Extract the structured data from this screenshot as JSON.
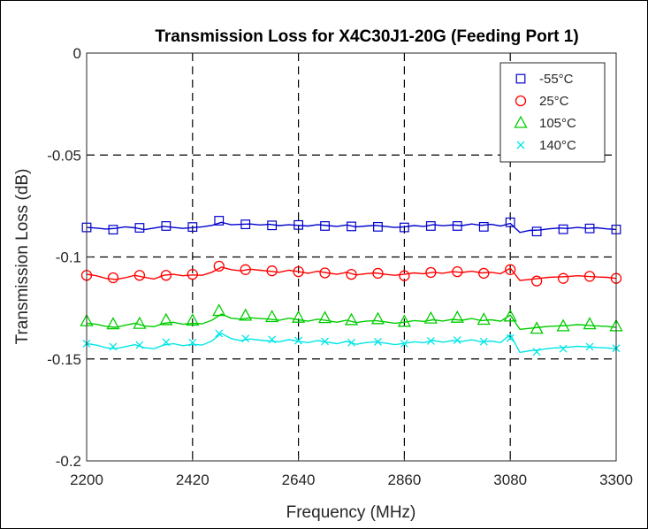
{
  "chart_data": {
    "type": "line",
    "title": "Transmission Loss for X4C30J1-20G (Feeding Port 1)",
    "xlabel": "Frequency (MHz)",
    "ylabel": "Transmission Loss (dB)",
    "xlim": [
      2200,
      3300
    ],
    "ylim": [
      -0.2,
      0
    ],
    "xticks": [
      2200,
      2420,
      2640,
      2860,
      3080,
      3300
    ],
    "xtick_labels": [
      "2200",
      "2420",
      "2640",
      "2860",
      "3080",
      "3300"
    ],
    "yticks": [
      0,
      -0.05,
      -0.1,
      -0.15,
      -0.2
    ],
    "ytick_labels": [
      "0",
      "-0.05",
      "-0.1",
      "-0.15",
      "-0.2"
    ],
    "grid": "dashed vertical and horizontal at ticks",
    "legend_position": "top-right",
    "x": [
      2200,
      2220,
      2240,
      2260,
      2280,
      2300,
      2320,
      2340,
      2360,
      2380,
      2400,
      2420,
      2440,
      2460,
      2480,
      2500,
      2520,
      2540,
      2560,
      2580,
      2600,
      2620,
      2640,
      2660,
      2680,
      2700,
      2720,
      2740,
      2760,
      2780,
      2800,
      2820,
      2840,
      2860,
      2880,
      2900,
      2920,
      2940,
      2960,
      2980,
      3000,
      3020,
      3040,
      3060,
      3080,
      3100,
      3120,
      3140,
      3160,
      3180,
      3200,
      3220,
      3240,
      3260,
      3280,
      3300
    ],
    "marker_x": [
      2200,
      2255,
      2310,
      2365,
      2420,
      2475,
      2530,
      2585,
      2640,
      2695,
      2750,
      2805,
      2860,
      2915,
      2970,
      3025,
      3080,
      3135,
      3190,
      3245,
      3300
    ],
    "series": [
      {
        "name": "-55°C",
        "color": "#0000cc",
        "marker": "square",
        "values": [
          -0.0855,
          -0.0858,
          -0.0863,
          -0.086,
          -0.0852,
          -0.0857,
          -0.0866,
          -0.0858,
          -0.085,
          -0.0855,
          -0.086,
          -0.0856,
          -0.0852,
          -0.0845,
          -0.083,
          -0.0842,
          -0.084,
          -0.0838,
          -0.0843,
          -0.084,
          -0.0846,
          -0.0842,
          -0.0845,
          -0.0848,
          -0.0841,
          -0.0846,
          -0.085,
          -0.0843,
          -0.0852,
          -0.0848,
          -0.0845,
          -0.085,
          -0.0855,
          -0.0852,
          -0.0846,
          -0.085,
          -0.0841,
          -0.0847,
          -0.0843,
          -0.0846,
          -0.0838,
          -0.0845,
          -0.084,
          -0.0848,
          -0.0835,
          -0.088,
          -0.087,
          -0.0868,
          -0.0862,
          -0.0858,
          -0.086,
          -0.0855,
          -0.086,
          -0.0857,
          -0.0862,
          -0.0865
        ],
        "marker_values": [
          -0.0855,
          -0.0866,
          -0.0857,
          -0.0848,
          -0.0853,
          -0.0822,
          -0.084,
          -0.0845,
          -0.0843,
          -0.0848,
          -0.085,
          -0.0852,
          -0.0855,
          -0.0848,
          -0.0848,
          -0.0852,
          -0.083,
          -0.0875,
          -0.0864,
          -0.086,
          -0.0865
        ]
      },
      {
        "name": "25°C",
        "color": "#ff0000",
        "marker": "circle",
        "values": [
          -0.1085,
          -0.1092,
          -0.1105,
          -0.111,
          -0.1102,
          -0.109,
          -0.11,
          -0.1108,
          -0.109,
          -0.1085,
          -0.1092,
          -0.1088,
          -0.109,
          -0.1075,
          -0.105,
          -0.1062,
          -0.1068,
          -0.106,
          -0.1065,
          -0.107,
          -0.1075,
          -0.1065,
          -0.1072,
          -0.108,
          -0.107,
          -0.1078,
          -0.1085,
          -0.1075,
          -0.1088,
          -0.1082,
          -0.1078,
          -0.1085,
          -0.109,
          -0.1085,
          -0.1078,
          -0.1082,
          -0.1075,
          -0.108,
          -0.1072,
          -0.1076,
          -0.107,
          -0.1078,
          -0.1075,
          -0.1082,
          -0.1055,
          -0.1115,
          -0.111,
          -0.1105,
          -0.11,
          -0.1098,
          -0.1096,
          -0.1092,
          -0.1095,
          -0.1098,
          -0.11,
          -0.1105
        ],
        "marker_values": [
          -0.109,
          -0.1102,
          -0.109,
          -0.109,
          -0.1085,
          -0.1045,
          -0.1062,
          -0.1068,
          -0.1072,
          -0.1078,
          -0.1085,
          -0.108,
          -0.1092,
          -0.1076,
          -0.1072,
          -0.108,
          -0.1062,
          -0.1118,
          -0.1105,
          -0.1095,
          -0.1105
        ]
      },
      {
        "name": "105°C",
        "color": "#00cc00",
        "marker": "triangle",
        "values": [
          -0.1325,
          -0.133,
          -0.134,
          -0.1345,
          -0.1335,
          -0.1325,
          -0.1338,
          -0.1342,
          -0.1325,
          -0.132,
          -0.133,
          -0.1325,
          -0.1328,
          -0.131,
          -0.128,
          -0.13,
          -0.1305,
          -0.1298,
          -0.1302,
          -0.1305,
          -0.131,
          -0.13,
          -0.1308,
          -0.1315,
          -0.1305,
          -0.1312,
          -0.132,
          -0.131,
          -0.1322,
          -0.1315,
          -0.1312,
          -0.1318,
          -0.1325,
          -0.132,
          -0.1312,
          -0.1316,
          -0.1308,
          -0.1314,
          -0.1306,
          -0.131,
          -0.1302,
          -0.1312,
          -0.1308,
          -0.1315,
          -0.1285,
          -0.1355,
          -0.135,
          -0.1345,
          -0.134,
          -0.1338,
          -0.1336,
          -0.1332,
          -0.1335,
          -0.1338,
          -0.134,
          -0.1345
        ],
        "marker_values": [
          -0.1315,
          -0.133,
          -0.1328,
          -0.131,
          -0.1312,
          -0.1265,
          -0.1288,
          -0.1295,
          -0.1298,
          -0.13,
          -0.131,
          -0.1305,
          -0.1318,
          -0.1302,
          -0.1298,
          -0.1308,
          -0.1292,
          -0.1352,
          -0.134,
          -0.133,
          -0.134
        ]
      },
      {
        "name": "140°C",
        "color": "#00e6e6",
        "marker": "x",
        "values": [
          -0.1425,
          -0.1432,
          -0.1445,
          -0.145,
          -0.144,
          -0.143,
          -0.1445,
          -0.145,
          -0.1432,
          -0.1425,
          -0.1435,
          -0.1428,
          -0.1432,
          -0.1412,
          -0.1375,
          -0.14,
          -0.141,
          -0.1402,
          -0.1408,
          -0.1412,
          -0.1416,
          -0.1405,
          -0.1414,
          -0.142,
          -0.141,
          -0.1418,
          -0.1425,
          -0.1414,
          -0.1428,
          -0.142,
          -0.1416,
          -0.1422,
          -0.143,
          -0.1424,
          -0.1416,
          -0.142,
          -0.141,
          -0.1418,
          -0.141,
          -0.1414,
          -0.1406,
          -0.1416,
          -0.1412,
          -0.142,
          -0.138,
          -0.1468,
          -0.146,
          -0.1455,
          -0.1448,
          -0.1445,
          -0.1442,
          -0.1438,
          -0.144,
          -0.1444,
          -0.1446,
          -0.145
        ],
        "marker_values": [
          -0.1425,
          -0.144,
          -0.1432,
          -0.1418,
          -0.142,
          -0.1375,
          -0.14,
          -0.1405,
          -0.141,
          -0.1414,
          -0.142,
          -0.1416,
          -0.1425,
          -0.1412,
          -0.1408,
          -0.1415,
          -0.1398,
          -0.1465,
          -0.145,
          -0.144,
          -0.1448
        ]
      }
    ]
  }
}
